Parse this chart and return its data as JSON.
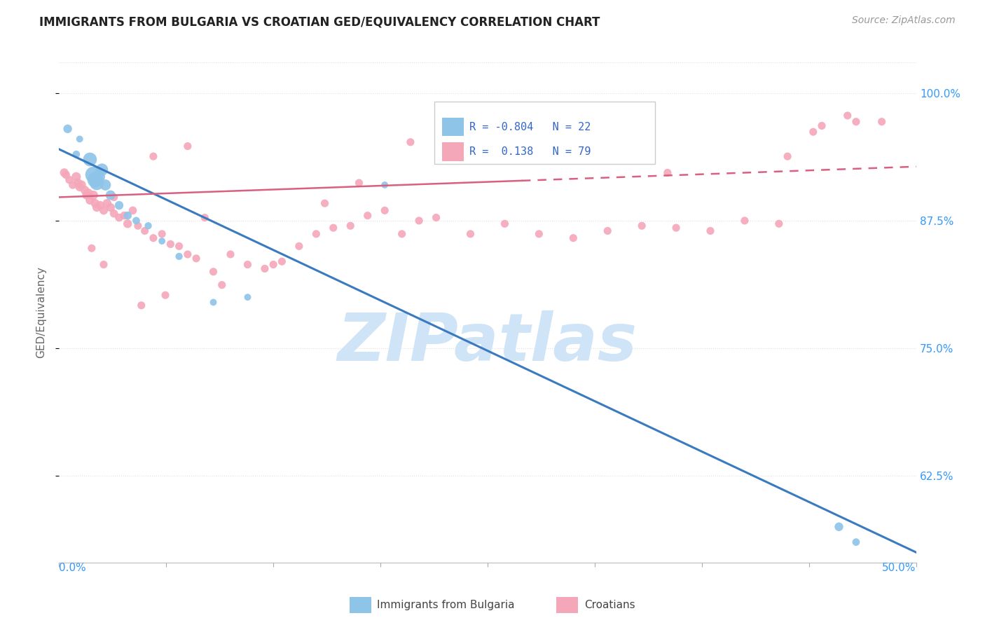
{
  "title": "IMMIGRANTS FROM BULGARIA VS CROATIAN GED/EQUIVALENCY CORRELATION CHART",
  "source": "Source: ZipAtlas.com",
  "ylabel": "GED/Equivalency",
  "xlim": [
    0.0,
    50.0
  ],
  "ylim": [
    54.0,
    103.0
  ],
  "yticks": [
    62.5,
    75.0,
    87.5,
    100.0
  ],
  "ytick_labels": [
    "62.5%",
    "75.0%",
    "87.5%",
    "100.0%"
  ],
  "xticks": [
    0.0,
    6.25,
    12.5,
    18.75,
    25.0,
    31.25,
    37.5,
    43.75,
    50.0
  ],
  "blue_color": "#8ec4e8",
  "pink_color": "#f4a7b9",
  "blue_line_color": "#3a7abf",
  "pink_line_color": "#d96080",
  "watermark": "ZIPatlas",
  "watermark_color": "#d0e4f7",
  "background_color": "#ffffff",
  "grid_color": "#e0e0e0",
  "legend_text_color": "#3366cc",
  "title_color": "#222222",
  "source_color": "#999999",
  "axis_label_color": "#3399ff",
  "ylabel_color": "#666666",
  "blue_scatter_x": [
    0.5,
    1.2,
    1.8,
    2.0,
    2.1,
    2.2,
    2.3,
    2.5,
    2.7,
    3.0,
    3.5,
    4.0,
    4.5,
    5.2,
    6.0,
    7.0,
    9.0,
    11.0,
    19.0,
    45.5,
    46.5,
    1.0
  ],
  "blue_scatter_y": [
    96.5,
    95.5,
    93.5,
    92.0,
    91.5,
    91.2,
    91.8,
    92.5,
    91.0,
    90.0,
    89.0,
    88.0,
    87.5,
    87.0,
    85.5,
    84.0,
    79.5,
    80.0,
    91.0,
    57.5,
    56.0,
    94.0
  ],
  "blue_scatter_s": [
    80,
    50,
    200,
    280,
    250,
    220,
    180,
    160,
    130,
    100,
    80,
    70,
    60,
    55,
    50,
    55,
    50,
    50,
    50,
    80,
    60,
    60
  ],
  "pink_scatter_x": [
    0.4,
    0.6,
    0.8,
    1.0,
    1.1,
    1.2,
    1.3,
    1.5,
    1.6,
    1.7,
    1.8,
    2.0,
    2.1,
    2.2,
    2.4,
    2.6,
    2.8,
    3.0,
    3.2,
    3.5,
    3.8,
    4.0,
    4.3,
    4.6,
    5.0,
    5.5,
    6.0,
    6.5,
    7.0,
    7.5,
    8.0,
    9.0,
    10.0,
    11.0,
    12.0,
    13.0,
    14.0,
    15.0,
    16.0,
    17.0,
    18.0,
    19.0,
    20.0,
    21.0,
    22.0,
    24.0,
    26.0,
    28.0,
    30.0,
    32.0,
    34.0,
    36.0,
    38.0,
    40.0,
    42.0,
    44.0,
    46.0,
    48.0,
    20.5,
    22.5,
    5.5,
    7.5,
    8.5,
    3.2,
    2.6,
    1.9,
    4.8,
    6.2,
    9.5,
    12.5,
    15.5,
    17.5,
    25.5,
    28.5,
    35.5,
    42.5,
    44.5,
    46.5,
    0.3
  ],
  "pink_scatter_y": [
    92.0,
    91.5,
    91.0,
    91.8,
    91.2,
    90.8,
    91.0,
    90.5,
    90.0,
    90.2,
    89.5,
    90.0,
    89.2,
    88.8,
    89.0,
    88.5,
    89.2,
    88.8,
    88.2,
    87.8,
    88.0,
    87.2,
    88.5,
    87.0,
    86.5,
    85.8,
    86.2,
    85.2,
    85.0,
    84.2,
    83.8,
    82.5,
    84.2,
    83.2,
    82.8,
    83.5,
    85.0,
    86.2,
    86.8,
    87.0,
    88.0,
    88.5,
    86.2,
    87.5,
    87.8,
    86.2,
    87.2,
    86.2,
    85.8,
    86.5,
    87.0,
    86.8,
    86.5,
    87.5,
    87.2,
    96.2,
    97.8,
    97.2,
    95.2,
    94.2,
    93.8,
    94.8,
    87.8,
    89.8,
    83.2,
    84.8,
    79.2,
    80.2,
    81.2,
    83.2,
    89.2,
    91.2,
    96.2,
    94.8,
    92.2,
    93.8,
    96.8,
    97.2,
    92.2
  ],
  "pink_scatter_s": [
    70,
    70,
    70,
    90,
    80,
    80,
    90,
    80,
    80,
    90,
    80,
    90,
    80,
    80,
    80,
    75,
    80,
    80,
    70,
    70,
    70,
    80,
    70,
    65,
    65,
    65,
    65,
    65,
    65,
    65,
    65,
    65,
    65,
    65,
    65,
    65,
    65,
    65,
    65,
    65,
    65,
    65,
    65,
    65,
    65,
    65,
    65,
    65,
    65,
    65,
    65,
    65,
    65,
    65,
    65,
    65,
    65,
    65,
    65,
    65,
    65,
    65,
    65,
    65,
    65,
    65,
    65,
    65,
    65,
    65,
    65,
    65,
    65,
    65,
    65,
    65,
    65,
    65,
    80
  ],
  "blue_line_x": [
    0.0,
    50.0
  ],
  "blue_line_y": [
    94.5,
    55.0
  ],
  "pink_line_x": [
    0.0,
    50.0
  ],
  "pink_line_y": [
    89.8,
    92.8
  ],
  "pink_dash_start_x": 27.0
}
